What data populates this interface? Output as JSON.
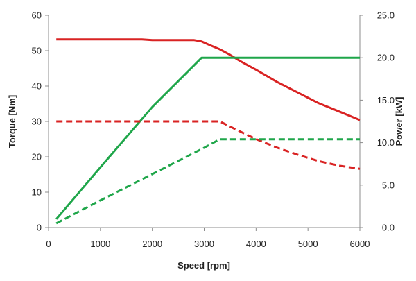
{
  "chart_data": {
    "type": "line",
    "title": "",
    "xlabel": "Speed [rpm]",
    "ylabel_left": "Torque [Nm]",
    "ylabel_right": "Power [kW]",
    "xlim": [
      0,
      6000
    ],
    "ylim_left": [
      0,
      60
    ],
    "ylim_right": [
      0,
      25
    ],
    "xticks": [
      "0",
      "1000",
      "2000",
      "3000",
      "4000",
      "5000",
      "6000"
    ],
    "yticks_left": [
      "0",
      "10",
      "20",
      "30",
      "40",
      "50",
      "60"
    ],
    "yticks_right": [
      "0.0",
      "5.0",
      "10.0",
      "15.0",
      "20.0",
      "25.0"
    ],
    "grid": false,
    "legend": "none",
    "series": [
      {
        "axis": "left",
        "color": "#d92323",
        "style": "solid",
        "x": [
          150,
          1000,
          1800,
          2000,
          2500,
          2800,
          2950,
          3100,
          3300,
          3500,
          3700,
          4000,
          4400,
          4800,
          5200,
          5600,
          6000
        ],
        "y": [
          53.2,
          53.2,
          53.2,
          53.0,
          53.0,
          53.0,
          52.6,
          51.6,
          50.4,
          48.8,
          47.0,
          44.6,
          41.2,
          38.2,
          35.2,
          32.8,
          30.4
        ]
      },
      {
        "axis": "right",
        "color": "#1fa64a",
        "style": "solid",
        "x": [
          150,
          1000,
          2000,
          2950,
          3000,
          4000,
          5000,
          6000
        ],
        "y": [
          1.0,
          7.1,
          14.2,
          20.0,
          20.0,
          20.0,
          20.0,
          20.0
        ]
      },
      {
        "axis": "left",
        "color": "#d92323",
        "style": "dashed",
        "x": [
          150,
          1000,
          2000,
          3000,
          3300,
          3600,
          4000,
          4400,
          4800,
          5200,
          5600,
          6000
        ],
        "y": [
          30,
          30,
          30,
          30,
          30,
          27.8,
          25.0,
          22.6,
          20.6,
          18.8,
          17.5,
          16.6
        ]
      },
      {
        "axis": "right",
        "color": "#1fa64a",
        "style": "dashed",
        "x": [
          150,
          1000,
          2000,
          3000,
          3300,
          4000,
          5000,
          6000
        ],
        "y": [
          0.5,
          3.2,
          6.3,
          9.4,
          10.4,
          10.4,
          10.4,
          10.4
        ]
      }
    ]
  }
}
